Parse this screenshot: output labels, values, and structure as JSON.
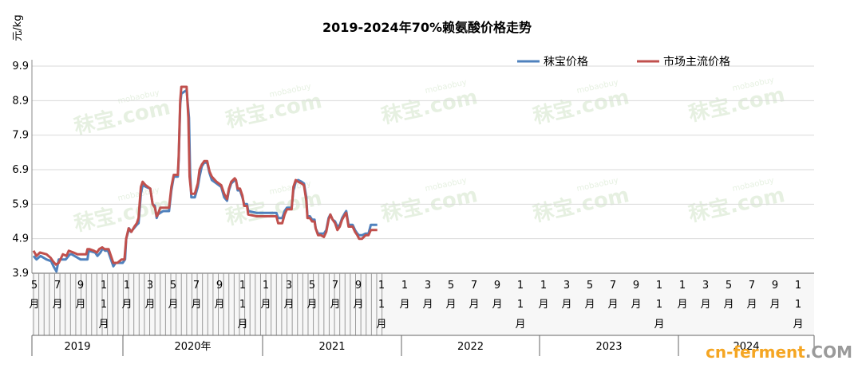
{
  "chart_data": {
    "type": "line",
    "title": "2019-2024年70%赖氨酸价格走势",
    "ylabel": "元/kg",
    "ylim": [
      3.9,
      9.9
    ],
    "yticks": [
      3.9,
      4.9,
      5.9,
      6.9,
      7.9,
      8.9,
      9.9
    ],
    "grid": "horizontal",
    "legend_position": "top-right",
    "month_ticks": [
      {
        "top": "5",
        "bottom": "月"
      },
      {
        "top": "7",
        "bottom": "月"
      },
      {
        "top": "9",
        "bottom": "月"
      },
      {
        "top": "1",
        "bottom": "1"
      },
      {
        "top": "1",
        "bottom": "月"
      },
      {
        "top": "3",
        "bottom": "月"
      },
      {
        "top": "5",
        "bottom": "月"
      },
      {
        "top": "7",
        "bottom": "月"
      },
      {
        "top": "9",
        "bottom": "月"
      },
      {
        "top": "1",
        "bottom": "1"
      },
      {
        "top": "1",
        "bottom": "月"
      },
      {
        "top": "3",
        "bottom": "月"
      },
      {
        "top": "5",
        "bottom": "月"
      },
      {
        "top": "7",
        "bottom": "月"
      },
      {
        "top": "9",
        "bottom": "月"
      },
      {
        "top": "1",
        "bottom": "1"
      },
      {
        "top": "1",
        "bottom": "月"
      },
      {
        "top": "3",
        "bottom": "月"
      },
      {
        "top": "5",
        "bottom": "月"
      },
      {
        "top": "7",
        "bottom": "月"
      },
      {
        "top": "9",
        "bottom": "月"
      },
      {
        "top": "1",
        "bottom": "1"
      },
      {
        "top": "1",
        "bottom": "月"
      },
      {
        "top": "3",
        "bottom": "月"
      },
      {
        "top": "5",
        "bottom": "月"
      },
      {
        "top": "7",
        "bottom": "月"
      },
      {
        "top": "9",
        "bottom": "月"
      },
      {
        "top": "1",
        "bottom": "1"
      },
      {
        "top": "1",
        "bottom": "月"
      },
      {
        "top": "3",
        "bottom": "月"
      },
      {
        "top": "5",
        "bottom": "月"
      },
      {
        "top": "7",
        "bottom": "月"
      },
      {
        "top": "9",
        "bottom": "月"
      },
      {
        "top": "1",
        "bottom": "1"
      }
    ],
    "month_tick_third_line": [
      "月",
      "月",
      "月",
      "月",
      "月",
      "月"
    ],
    "years": [
      "2019",
      "2020年",
      "2021",
      "2022",
      "2023",
      "2024"
    ],
    "series": [
      {
        "name": "秣宝价格",
        "color": "#4f81bd",
        "points": [
          [
            0,
            4.4
          ],
          [
            0.5,
            4.3
          ],
          [
            1.2,
            4.4
          ],
          [
            2.2,
            4.3
          ],
          [
            3.0,
            4.25
          ],
          [
            3.4,
            4.1
          ],
          [
            3.9,
            3.95
          ],
          [
            4.3,
            4.3
          ],
          [
            5.5,
            4.3
          ],
          [
            6.2,
            4.45
          ],
          [
            6.5,
            4.45
          ],
          [
            7.5,
            4.35
          ],
          [
            8.0,
            4.3
          ],
          [
            9.2,
            4.3
          ],
          [
            9.4,
            4.55
          ],
          [
            10.5,
            4.5
          ],
          [
            10.9,
            4.4
          ],
          [
            11.4,
            4.5
          ],
          [
            11.8,
            4.62
          ],
          [
            12.2,
            4.55
          ],
          [
            12.7,
            4.55
          ],
          [
            13.2,
            4.3
          ],
          [
            13.6,
            4.1
          ],
          [
            14.0,
            4.2
          ],
          [
            15.2,
            4.2
          ],
          [
            15.6,
            4.3
          ],
          [
            15.8,
            4.9
          ],
          [
            16.3,
            5.2
          ],
          [
            16.6,
            5.1
          ],
          [
            17.1,
            5.2
          ],
          [
            17.6,
            5.3
          ],
          [
            17.9,
            5.35
          ],
          [
            18.3,
            6.2
          ],
          [
            18.6,
            6.45
          ],
          [
            19.2,
            6.4
          ],
          [
            19.9,
            6.35
          ],
          [
            20.3,
            5.9
          ],
          [
            20.7,
            5.85
          ],
          [
            21.0,
            5.5
          ],
          [
            21.2,
            5.6
          ],
          [
            21.6,
            5.65
          ],
          [
            22.1,
            5.7
          ],
          [
            23.1,
            5.7
          ],
          [
            23.5,
            6.3
          ],
          [
            23.9,
            6.7
          ],
          [
            24.2,
            6.7
          ],
          [
            24.6,
            6.7
          ],
          [
            24.75,
            7.2
          ],
          [
            25.0,
            8.8
          ],
          [
            25.2,
            9.1
          ],
          [
            25.6,
            9.15
          ],
          [
            26.1,
            9.2
          ],
          [
            26.5,
            8.4
          ],
          [
            26.7,
            6.8
          ],
          [
            26.9,
            6.1
          ],
          [
            27.5,
            6.1
          ],
          [
            28.0,
            6.4
          ],
          [
            28.3,
            6.7
          ],
          [
            28.7,
            7.0
          ],
          [
            29.1,
            7.1
          ],
          [
            29.6,
            7.1
          ],
          [
            30.0,
            6.8
          ],
          [
            30.4,
            6.6
          ],
          [
            31.2,
            6.5
          ],
          [
            32.0,
            6.4
          ],
          [
            32.5,
            6.1
          ],
          [
            33.0,
            6.0
          ],
          [
            33.3,
            6.3
          ],
          [
            33.7,
            6.5
          ],
          [
            34.3,
            6.6
          ],
          [
            34.5,
            6.6
          ],
          [
            34.8,
            6.3
          ],
          [
            35.2,
            6.3
          ],
          [
            35.6,
            6.1
          ],
          [
            35.9,
            5.9
          ],
          [
            36.4,
            5.9
          ],
          [
            36.6,
            5.7
          ],
          [
            38.0,
            5.65
          ],
          [
            40.5,
            5.65
          ],
          [
            41.4,
            5.65
          ],
          [
            41.7,
            5.5
          ],
          [
            42.4,
            5.5
          ],
          [
            42.8,
            5.7
          ],
          [
            43.2,
            5.8
          ],
          [
            44.0,
            5.8
          ],
          [
            44.3,
            6.3
          ],
          [
            44.7,
            6.55
          ],
          [
            45.1,
            6.6
          ],
          [
            45.7,
            6.55
          ],
          [
            46.1,
            6.5
          ],
          [
            46.5,
            6.1
          ],
          [
            46.7,
            5.55
          ],
          [
            47.1,
            5.55
          ],
          [
            47.5,
            5.45
          ],
          [
            47.9,
            5.45
          ],
          [
            48.1,
            5.2
          ],
          [
            48.5,
            5.05
          ],
          [
            49.0,
            5.05
          ],
          [
            49.5,
            5.05
          ],
          [
            49.9,
            5.15
          ],
          [
            50.3,
            5.5
          ],
          [
            50.6,
            5.6
          ],
          [
            51.0,
            5.45
          ],
          [
            51.4,
            5.4
          ],
          [
            51.8,
            5.25
          ],
          [
            52.2,
            5.3
          ],
          [
            52.6,
            5.5
          ],
          [
            53.1,
            5.65
          ],
          [
            53.3,
            5.7
          ],
          [
            53.7,
            5.3
          ],
          [
            54.4,
            5.3
          ],
          [
            54.8,
            5.15
          ],
          [
            55.2,
            5.05
          ],
          [
            55.5,
            5.0
          ],
          [
            56.0,
            5.0
          ],
          [
            56.6,
            5.05
          ],
          [
            57.1,
            5.05
          ],
          [
            57.5,
            5.3
          ],
          [
            58.6,
            5.3
          ]
        ]
      },
      {
        "name": "市场主流价格",
        "color": "#c0504d",
        "points": [
          [
            0,
            4.55
          ],
          [
            0.5,
            4.4
          ],
          [
            1.1,
            4.5
          ],
          [
            2.2,
            4.45
          ],
          [
            2.9,
            4.35
          ],
          [
            3.3,
            4.25
          ],
          [
            3.8,
            4.15
          ],
          [
            4.3,
            4.2
          ],
          [
            5.0,
            4.45
          ],
          [
            5.6,
            4.4
          ],
          [
            6.0,
            4.55
          ],
          [
            6.8,
            4.5
          ],
          [
            7.5,
            4.45
          ],
          [
            8.2,
            4.45
          ],
          [
            9.0,
            4.45
          ],
          [
            9.2,
            4.6
          ],
          [
            9.5,
            4.6
          ],
          [
            10.3,
            4.55
          ],
          [
            10.8,
            4.5
          ],
          [
            11.2,
            4.6
          ],
          [
            11.7,
            4.65
          ],
          [
            12.1,
            4.6
          ],
          [
            12.8,
            4.6
          ],
          [
            13.1,
            4.45
          ],
          [
            13.6,
            4.2
          ],
          [
            14.3,
            4.2
          ],
          [
            15.0,
            4.3
          ],
          [
            15.5,
            4.3
          ],
          [
            15.8,
            4.9
          ],
          [
            16.2,
            5.2
          ],
          [
            16.7,
            5.1
          ],
          [
            17.2,
            5.25
          ],
          [
            17.6,
            5.35
          ],
          [
            17.9,
            5.5
          ],
          [
            18.3,
            6.4
          ],
          [
            18.6,
            6.55
          ],
          [
            19.1,
            6.45
          ],
          [
            19.9,
            6.35
          ],
          [
            20.3,
            5.9
          ],
          [
            20.7,
            5.8
          ],
          [
            21.0,
            5.55
          ],
          [
            21.2,
            5.6
          ],
          [
            21.6,
            5.8
          ],
          [
            22.1,
            5.8
          ],
          [
            23.1,
            5.8
          ],
          [
            23.5,
            6.4
          ],
          [
            23.9,
            6.75
          ],
          [
            24.2,
            6.75
          ],
          [
            24.6,
            6.75
          ],
          [
            24.75,
            7.3
          ],
          [
            25.0,
            8.9
          ],
          [
            25.2,
            9.3
          ],
          [
            25.6,
            9.3
          ],
          [
            26.1,
            9.3
          ],
          [
            26.4,
            8.4
          ],
          [
            26.6,
            6.7
          ],
          [
            26.9,
            6.2
          ],
          [
            27.5,
            6.2
          ],
          [
            28.0,
            6.5
          ],
          [
            28.3,
            6.9
          ],
          [
            28.7,
            7.05
          ],
          [
            29.1,
            7.15
          ],
          [
            29.6,
            7.15
          ],
          [
            30.0,
            6.85
          ],
          [
            30.4,
            6.7
          ],
          [
            31.2,
            6.55
          ],
          [
            32.0,
            6.45
          ],
          [
            32.5,
            6.2
          ],
          [
            33.0,
            6.05
          ],
          [
            33.3,
            6.35
          ],
          [
            33.7,
            6.55
          ],
          [
            34.3,
            6.65
          ],
          [
            34.5,
            6.6
          ],
          [
            34.8,
            6.35
          ],
          [
            35.2,
            6.35
          ],
          [
            35.6,
            6.15
          ],
          [
            35.9,
            5.85
          ],
          [
            36.4,
            5.85
          ],
          [
            36.6,
            5.6
          ],
          [
            38.0,
            5.55
          ],
          [
            40.5,
            5.55
          ],
          [
            41.4,
            5.55
          ],
          [
            41.7,
            5.35
          ],
          [
            42.4,
            5.35
          ],
          [
            42.8,
            5.6
          ],
          [
            43.2,
            5.75
          ],
          [
            44.0,
            5.75
          ],
          [
            44.3,
            6.4
          ],
          [
            44.7,
            6.6
          ],
          [
            45.1,
            6.55
          ],
          [
            45.7,
            6.5
          ],
          [
            46.1,
            6.45
          ],
          [
            46.5,
            6.0
          ],
          [
            46.7,
            5.5
          ],
          [
            47.1,
            5.5
          ],
          [
            47.5,
            5.4
          ],
          [
            47.9,
            5.4
          ],
          [
            48.1,
            5.2
          ],
          [
            48.5,
            5.0
          ],
          [
            49.0,
            5.0
          ],
          [
            49.5,
            4.95
          ],
          [
            49.9,
            5.1
          ],
          [
            50.3,
            5.45
          ],
          [
            50.6,
            5.6
          ],
          [
            51.0,
            5.45
          ],
          [
            51.4,
            5.35
          ],
          [
            51.8,
            5.15
          ],
          [
            52.2,
            5.25
          ],
          [
            52.6,
            5.45
          ],
          [
            53.1,
            5.6
          ],
          [
            53.3,
            5.65
          ],
          [
            53.7,
            5.25
          ],
          [
            54.4,
            5.25
          ],
          [
            54.8,
            5.1
          ],
          [
            55.2,
            5.0
          ],
          [
            55.5,
            4.9
          ],
          [
            56.0,
            4.9
          ],
          [
            56.6,
            5.0
          ],
          [
            57.1,
            5.0
          ],
          [
            57.5,
            5.15
          ],
          [
            58.6,
            5.15
          ]
        ]
      }
    ]
  },
  "watermark": {
    "logo_text": "秣宝.com",
    "sub_text": "mobaobuy",
    "color": "#8fbf7a"
  },
  "footer_brand": {
    "part1": "cn-ferment",
    "part2": ".COM",
    "color1": "#f5a623",
    "color2": "#9a9a9a"
  }
}
